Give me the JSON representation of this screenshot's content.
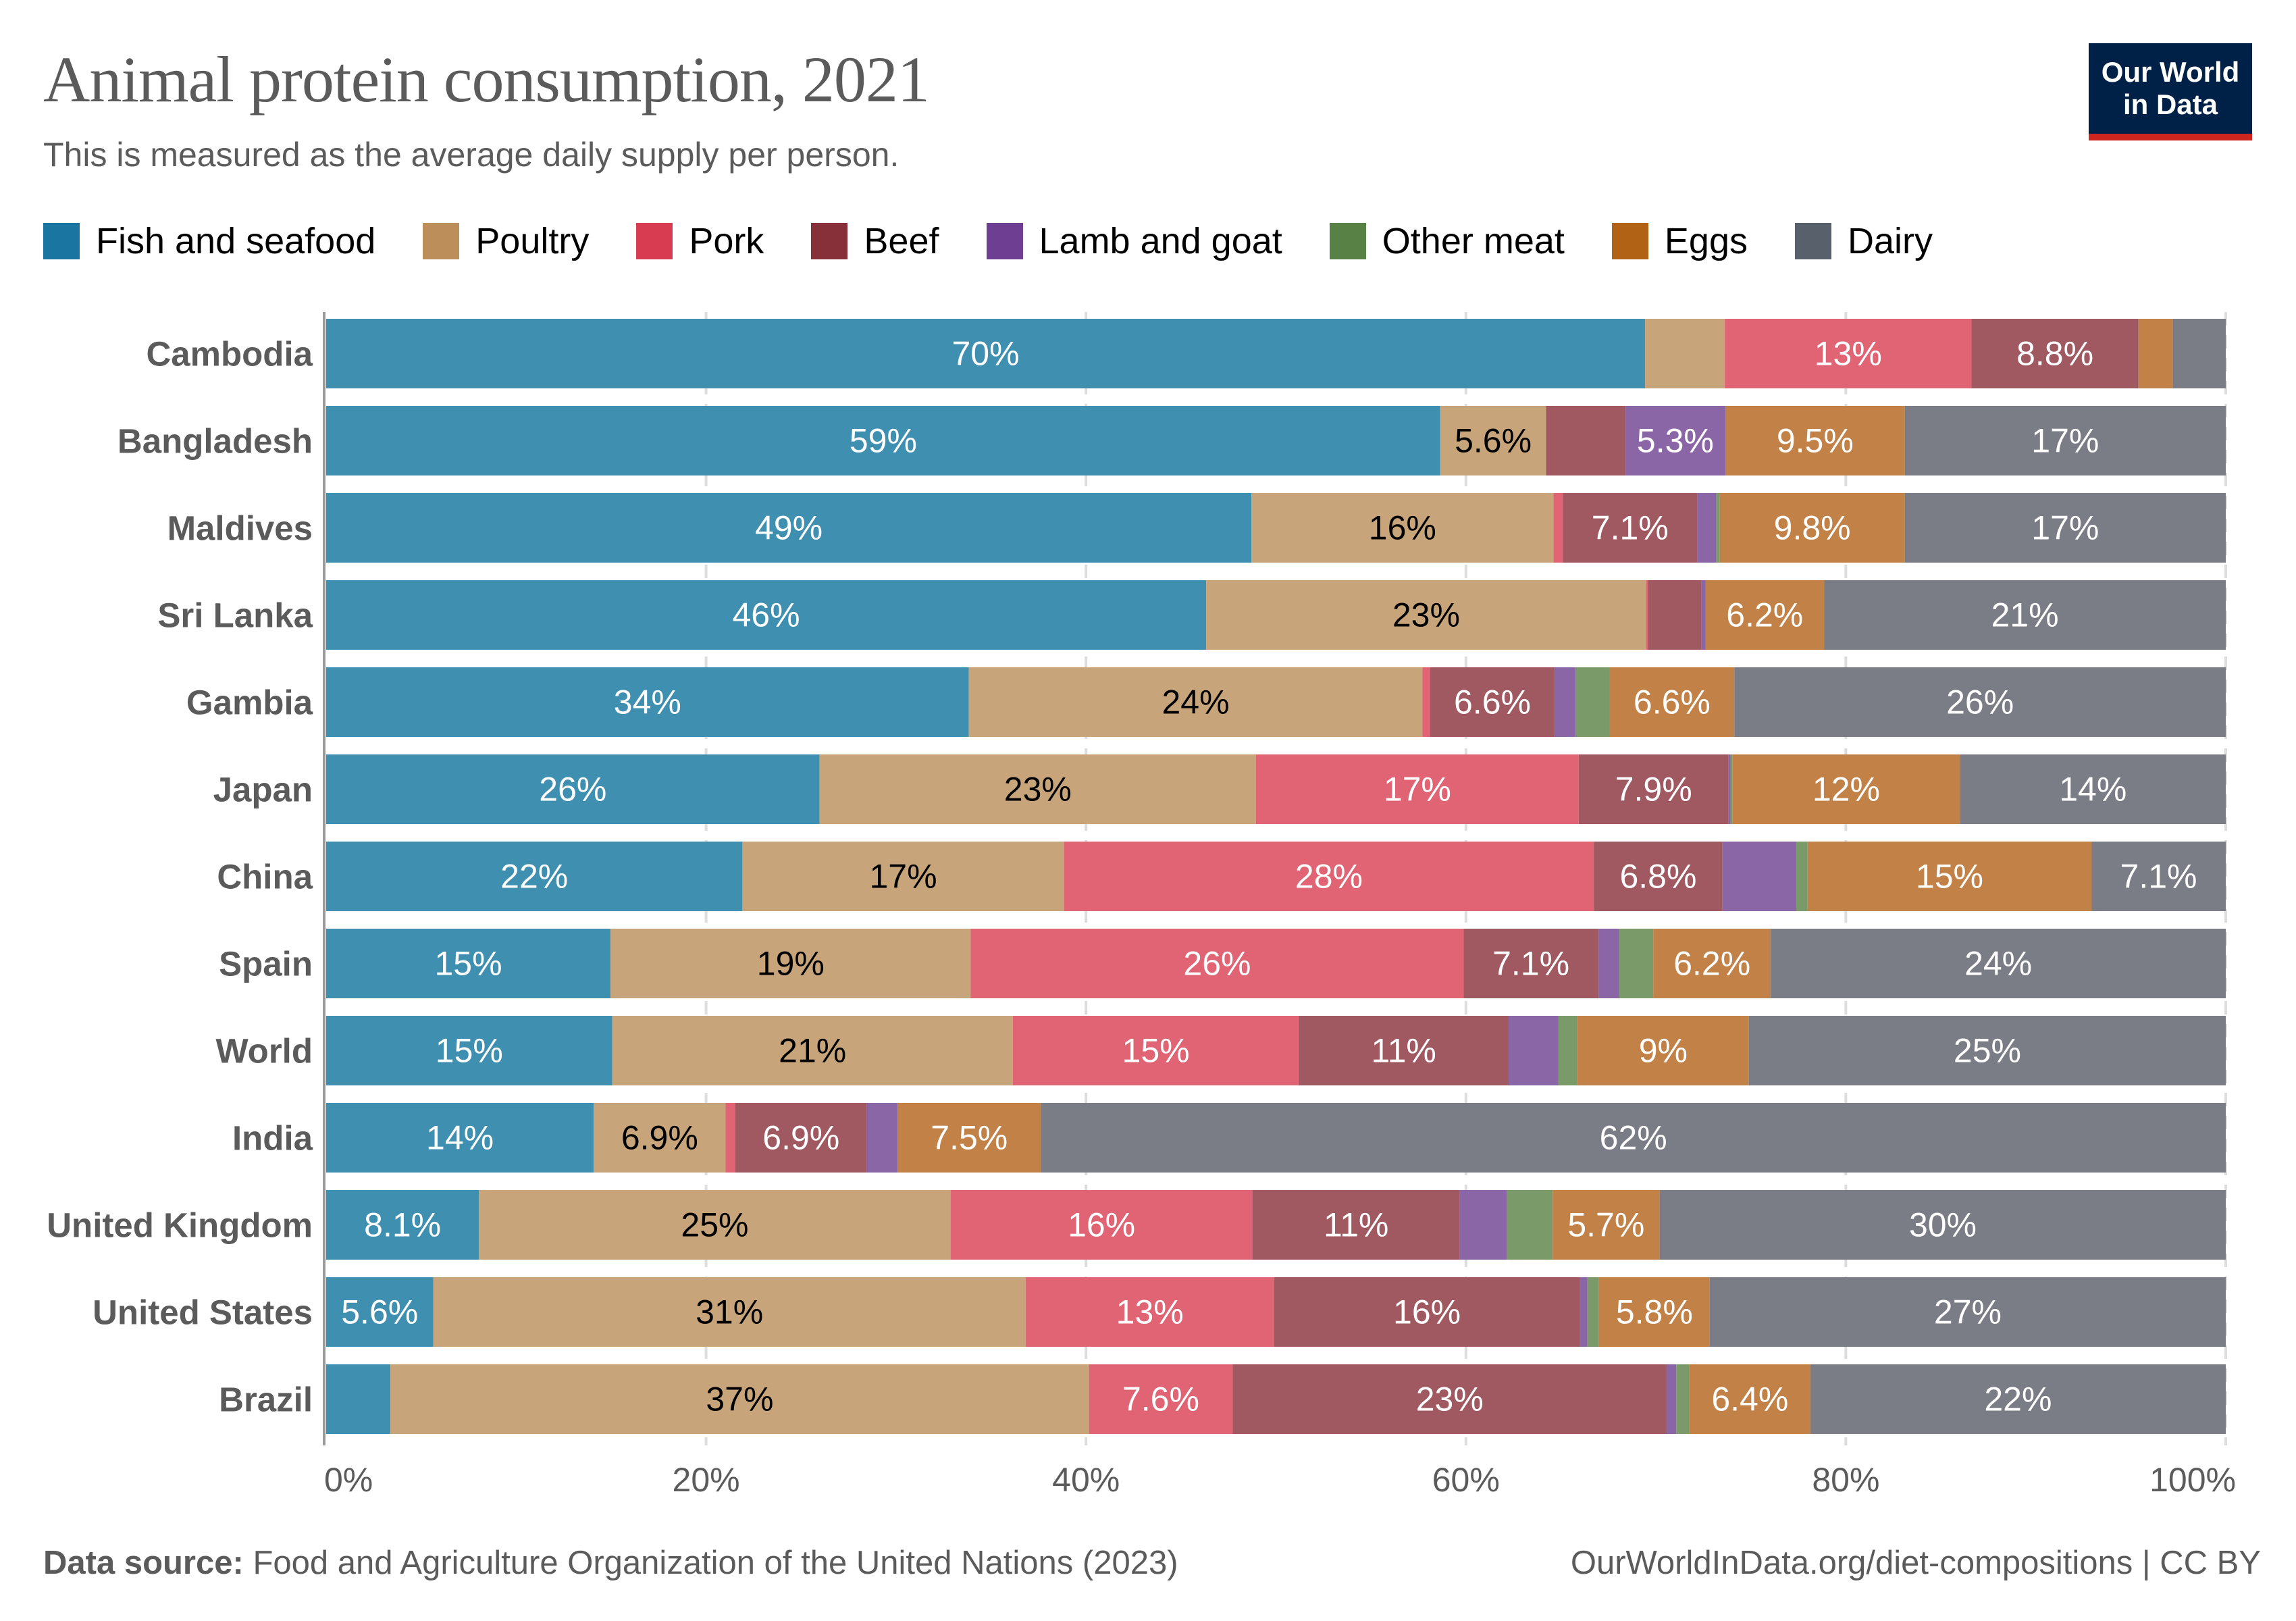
{
  "header": {
    "title": "Animal protein consumption, 2021",
    "subtitle": "This is measured as the average daily supply per person.",
    "logo_line1": "Our World",
    "logo_line2": "in Data"
  },
  "footer": {
    "source_label": "Data source:",
    "source_text": " Food and Agriculture Organization of the United Nations (2023)",
    "url_text": "OurWorldInData.org/diet-compositions | CC BY"
  },
  "colors": {
    "logo_bg": "#002147",
    "logo_accent": "#ce261e",
    "text": "#5b5b5b"
  },
  "chart_data": {
    "type": "bar",
    "orientation": "horizontal",
    "stacked": true,
    "normalized": true,
    "title": "Animal protein consumption, 2021",
    "subtitle": "This is measured as the average daily supply per person.",
    "xlabel": "",
    "ylabel": "",
    "xlim": [
      0,
      100
    ],
    "x_ticks": [
      "0%",
      "20%",
      "40%",
      "60%",
      "80%",
      "100%"
    ],
    "x_tick_values": [
      0,
      20,
      40,
      60,
      80,
      100
    ],
    "grid": "vertical dashed",
    "legend_position": "top",
    "categories": [
      "Cambodia",
      "Bangladesh",
      "Maldives",
      "Sri Lanka",
      "Gambia",
      "Japan",
      "China",
      "Spain",
      "World",
      "India",
      "United Kingdom",
      "United States",
      "Brazil"
    ],
    "series": [
      {
        "name": "Fish and seafood",
        "legend_color": "#1a76a0",
        "bar_color": "#3f8fb1",
        "label_color": "#ffffff",
        "values": [
          69.5,
          59,
          49,
          46,
          34,
          26,
          22,
          15,
          15,
          14,
          8.1,
          5.6,
          3.4
        ],
        "labels": [
          "70%",
          "59%",
          "49%",
          "46%",
          "34%",
          "26%",
          "22%",
          "15%",
          "15%",
          "14%",
          "8.1%",
          "5.6%",
          ""
        ]
      },
      {
        "name": "Poultry",
        "legend_color": "#bc8e5a",
        "bar_color": "#c8a47b",
        "label_color": "#000000",
        "values": [
          4.2,
          5.6,
          16,
          23,
          24,
          23,
          17,
          19,
          21,
          6.9,
          25,
          31,
          37
        ],
        "labels": [
          "",
          "5.6%",
          "16%",
          "23%",
          "24%",
          "23%",
          "17%",
          "19%",
          "21%",
          "6.9%",
          "25%",
          "31%",
          "37%"
        ]
      },
      {
        "name": "Pork",
        "legend_color": "#d73c50",
        "bar_color": "#e06474",
        "label_color": "#ffffff",
        "values": [
          13,
          0,
          0.5,
          0.1,
          0.4,
          17,
          28,
          26,
          15,
          0.5,
          16,
          13,
          7.6
        ],
        "labels": [
          "13%",
          "",
          "",
          "",
          "",
          "17%",
          "28%",
          "26%",
          "15%",
          "",
          "16%",
          "13%",
          "7.6%"
        ]
      },
      {
        "name": "Beef",
        "legend_color": "#883039",
        "bar_color": "#a05960",
        "label_color": "#ffffff",
        "values": [
          8.8,
          4.2,
          7.1,
          2.8,
          6.6,
          7.9,
          6.8,
          7.1,
          11,
          6.9,
          11,
          16,
          23
        ],
        "labels": [
          "8.8%",
          "",
          "7.1%",
          "",
          "6.6%",
          "7.9%",
          "6.8%",
          "7.1%",
          "11%",
          "6.9%",
          "11%",
          "16%",
          "23%"
        ]
      },
      {
        "name": "Lamb and goat",
        "legend_color": "#6d3e91",
        "bar_color": "#8b66a7",
        "label_color": "#ffffff",
        "values": [
          0,
          5.3,
          1.0,
          0.2,
          1.1,
          0.1,
          3.9,
          1.1,
          2.6,
          1.6,
          2.5,
          0.4,
          0.5
        ],
        "labels": [
          "",
          "5.3%",
          "",
          "",
          "",
          "",
          "",
          "",
          "",
          "",
          "",
          "",
          ""
        ]
      },
      {
        "name": "Other meat",
        "legend_color": "#578145",
        "bar_color": "#7a9a6a",
        "label_color": "#ffffff",
        "values": [
          0,
          0,
          0.2,
          0,
          1.8,
          0.1,
          0.6,
          1.8,
          1.0,
          0,
          2.4,
          0.6,
          0.7
        ],
        "labels": [
          "",
          "",
          "",
          "",
          "",
          "",
          "",
          "",
          "",
          "",
          "",
          "",
          ""
        ]
      },
      {
        "name": "Eggs",
        "legend_color": "#b16214",
        "bar_color": "#c18147",
        "label_color": "#ffffff",
        "values": [
          1.8,
          9.5,
          9.8,
          6.2,
          6.6,
          12,
          15,
          6.2,
          9,
          7.5,
          5.7,
          5.8,
          6.4
        ],
        "labels": [
          "",
          "9.5%",
          "9.8%",
          "6.2%",
          "6.6%",
          "12%",
          "15%",
          "6.2%",
          "9%",
          "7.5%",
          "5.7%",
          "5.8%",
          "6.4%"
        ]
      },
      {
        "name": "Dairy",
        "legend_color": "#58606b",
        "bar_color": "#7a7d85",
        "label_color": "#ffffff",
        "values": [
          2.8,
          17,
          17,
          21,
          26,
          14,
          7.1,
          24,
          25,
          62,
          30,
          27,
          22
        ],
        "labels": [
          "",
          "17%",
          "17%",
          "21%",
          "26%",
          "14%",
          "7.1%",
          "24%",
          "25%",
          "62%",
          "30%",
          "27%",
          "22%"
        ]
      }
    ]
  }
}
